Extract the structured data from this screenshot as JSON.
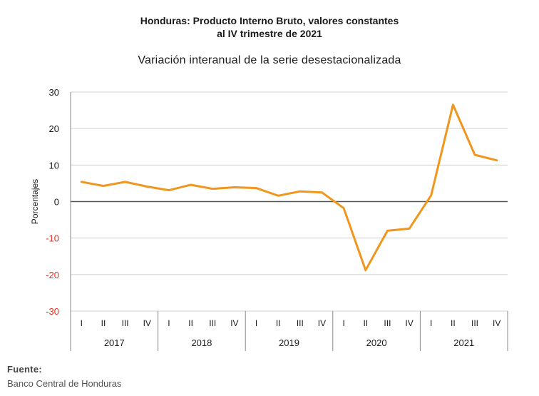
{
  "header": {
    "title_line1": "Honduras: Producto Interno Bruto, valores constantes",
    "title_line2": "al IV trimestre de 2021",
    "subtitle": "Variación interanual de la serie desestacionalizada"
  },
  "footer": {
    "source_label": "Fuente:",
    "source_text": "Banco Central de Honduras"
  },
  "colors": {
    "line": "#F0961E",
    "negative_tick": "#E0301E",
    "grid": "#D0D0D0",
    "zero_line": "#555555"
  },
  "chart_data": {
    "type": "line",
    "title": "Variación interanual de la serie desestacionalizada",
    "ylabel": "Porcentajes",
    "xlabel": "",
    "ylim": [
      -30,
      30
    ],
    "yticks": [
      30,
      20,
      10,
      0,
      -10,
      -20,
      -30
    ],
    "grid": true,
    "quarters": [
      "I",
      "II",
      "III",
      "IV"
    ],
    "years": [
      "2017",
      "2018",
      "2019",
      "2020",
      "2021"
    ],
    "series": [
      {
        "name": "",
        "values": [
          5.4,
          4.3,
          5.4,
          4.1,
          3.1,
          4.6,
          3.5,
          3.9,
          3.7,
          1.6,
          2.8,
          2.5,
          -1.8,
          -18.8,
          -8.0,
          -7.4,
          1.7,
          26.5,
          12.8,
          11.3
        ]
      }
    ]
  }
}
